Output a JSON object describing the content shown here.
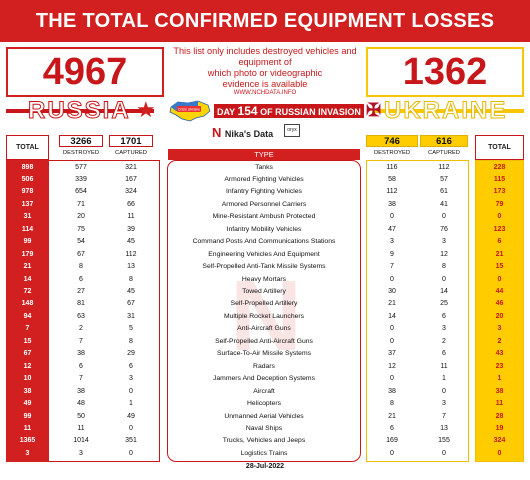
{
  "header": {
    "title": "THE TOTAL CONFIRMED  EQUIPMENT LOSSES"
  },
  "totals": {
    "russia": "4967",
    "ukraine": "1362"
  },
  "note": {
    "lines": [
      "This list only includes destroyed vehicles and",
      "equipment of",
      "which photo or videographic",
      "evidence is available"
    ],
    "url": "WWW.NCHDATA.INFO"
  },
  "countries": {
    "russia": "RUSSIA",
    "ukraine": "UKRAINE"
  },
  "map_caption": "Crisis Ukraine",
  "day_banner": {
    "prefix": "DAY",
    "number": "154",
    "suffix": "OF RUSSIAN INVASION"
  },
  "brand": {
    "logo": "N",
    "name": "Nika's Data",
    "partner": "oryx"
  },
  "table": {
    "total_label": "TOTAL",
    "type_label": "TYPE",
    "destroyed_label": "DESTROYED",
    "captured_label": "CAPTURED",
    "russia_destroyed_sum": "3266",
    "russia_captured_sum": "1701",
    "ukraine_destroyed_sum": "746",
    "ukraine_captured_sum": "616"
  },
  "chart_data": {
    "type": "table",
    "title": "THE TOTAL CONFIRMED  EQUIPMENT LOSSES",
    "columns": [
      "TOTAL",
      "DESTROYED",
      "CAPTURED",
      "TYPE",
      "DESTROYED",
      "CAPTURED",
      "TOTAL"
    ],
    "rows": [
      {
        "type": "Tanks",
        "ru_total": "898",
        "ru_destroyed": "577",
        "ru_captured": "321",
        "ua_destroyed": "116",
        "ua_captured": "112",
        "ua_total": "228"
      },
      {
        "type": "Armored Fighting Vehicles",
        "ru_total": "506",
        "ru_destroyed": "339",
        "ru_captured": "167",
        "ua_destroyed": "58",
        "ua_captured": "57",
        "ua_total": "115"
      },
      {
        "type": "Infantry Fighting Vehicles",
        "ru_total": "978",
        "ru_destroyed": "654",
        "ru_captured": "324",
        "ua_destroyed": "112",
        "ua_captured": "61",
        "ua_total": "173"
      },
      {
        "type": "Armored Personnel Carriers",
        "ru_total": "137",
        "ru_destroyed": "71",
        "ru_captured": "66",
        "ua_destroyed": "38",
        "ua_captured": "41",
        "ua_total": "79"
      },
      {
        "type": "Mine-Resistant Ambush Protected",
        "ru_total": "31",
        "ru_destroyed": "20",
        "ru_captured": "11",
        "ua_destroyed": "0",
        "ua_captured": "0",
        "ua_total": "0"
      },
      {
        "type": "Infantry Mobility Vehicles",
        "ru_total": "114",
        "ru_destroyed": "75",
        "ru_captured": "39",
        "ua_destroyed": "47",
        "ua_captured": "76",
        "ua_total": "123"
      },
      {
        "type": "Command Posts And Communications Stations",
        "ru_total": "99",
        "ru_destroyed": "54",
        "ru_captured": "45",
        "ua_destroyed": "3",
        "ua_captured": "3",
        "ua_total": "6"
      },
      {
        "type": "Engineering Vehicles And Equipment",
        "ru_total": "179",
        "ru_destroyed": "67",
        "ru_captured": "112",
        "ua_destroyed": "9",
        "ua_captured": "12",
        "ua_total": "21"
      },
      {
        "type": "Self-Propelled Anti-Tank Missile Systems",
        "ru_total": "21",
        "ru_destroyed": "8",
        "ru_captured": "13",
        "ua_destroyed": "7",
        "ua_captured": "8",
        "ua_total": "15"
      },
      {
        "type": "Heavy Mortars",
        "ru_total": "14",
        "ru_destroyed": "6",
        "ru_captured": "8",
        "ua_destroyed": "0",
        "ua_captured": "0",
        "ua_total": "0"
      },
      {
        "type": "Towed Artillery",
        "ru_total": "72",
        "ru_destroyed": "27",
        "ru_captured": "45",
        "ua_destroyed": "30",
        "ua_captured": "14",
        "ua_total": "44"
      },
      {
        "type": "Self-Propelled Artillery",
        "ru_total": "148",
        "ru_destroyed": "81",
        "ru_captured": "67",
        "ua_destroyed": "21",
        "ua_captured": "25",
        "ua_total": "46"
      },
      {
        "type": "Multiple Rocket Launchers",
        "ru_total": "94",
        "ru_destroyed": "63",
        "ru_captured": "31",
        "ua_destroyed": "14",
        "ua_captured": "6",
        "ua_total": "20"
      },
      {
        "type": "Anti-Aircraft Guns",
        "ru_total": "7",
        "ru_destroyed": "2",
        "ru_captured": "5",
        "ua_destroyed": "0",
        "ua_captured": "3",
        "ua_total": "3"
      },
      {
        "type": "Self-Propelled Anti-Aircraft Guns",
        "ru_total": "15",
        "ru_destroyed": "7",
        "ru_captured": "8",
        "ua_destroyed": "0",
        "ua_captured": "2",
        "ua_total": "2"
      },
      {
        "type": "Surface-To-Air Missile Systems",
        "ru_total": "67",
        "ru_destroyed": "38",
        "ru_captured": "29",
        "ua_destroyed": "37",
        "ua_captured": "6",
        "ua_total": "43"
      },
      {
        "type": "Radars",
        "ru_total": "12",
        "ru_destroyed": "6",
        "ru_captured": "6",
        "ua_destroyed": "12",
        "ua_captured": "11",
        "ua_total": "23"
      },
      {
        "type": "Jammers And Deception Systems",
        "ru_total": "10",
        "ru_destroyed": "7",
        "ru_captured": "3",
        "ua_destroyed": "0",
        "ua_captured": "1",
        "ua_total": "1"
      },
      {
        "type": "Aircraft",
        "ru_total": "38",
        "ru_destroyed": "38",
        "ru_captured": "0",
        "ua_destroyed": "38",
        "ua_captured": "0",
        "ua_total": "38"
      },
      {
        "type": "Helicopters",
        "ru_total": "49",
        "ru_destroyed": "48",
        "ru_captured": "1",
        "ua_destroyed": "8",
        "ua_captured": "3",
        "ua_total": "11"
      },
      {
        "type": "Unmanned Aerial Vehicles",
        "ru_total": "99",
        "ru_destroyed": "50",
        "ru_captured": "49",
        "ua_destroyed": "21",
        "ua_captured": "7",
        "ua_total": "28"
      },
      {
        "type": "Naval Ships",
        "ru_total": "11",
        "ru_destroyed": "11",
        "ru_captured": "0",
        "ua_destroyed": "6",
        "ua_captured": "13",
        "ua_total": "19"
      },
      {
        "type": "Trucks, Vehicles and Jeeps",
        "ru_total": "1365",
        "ru_destroyed": "1014",
        "ru_captured": "351",
        "ua_destroyed": "169",
        "ua_captured": "155",
        "ua_total": "324"
      },
      {
        "type": "Logistics Trains",
        "ru_total": "3",
        "ru_destroyed": "3",
        "ru_captured": "0",
        "ua_destroyed": "0",
        "ua_captured": "0",
        "ua_total": "0"
      }
    ]
  },
  "footer": {
    "date": "28-Jul-2022"
  },
  "colors": {
    "russia_red": "#d1201f",
    "ukraine_yellow": "#ffcc00"
  }
}
